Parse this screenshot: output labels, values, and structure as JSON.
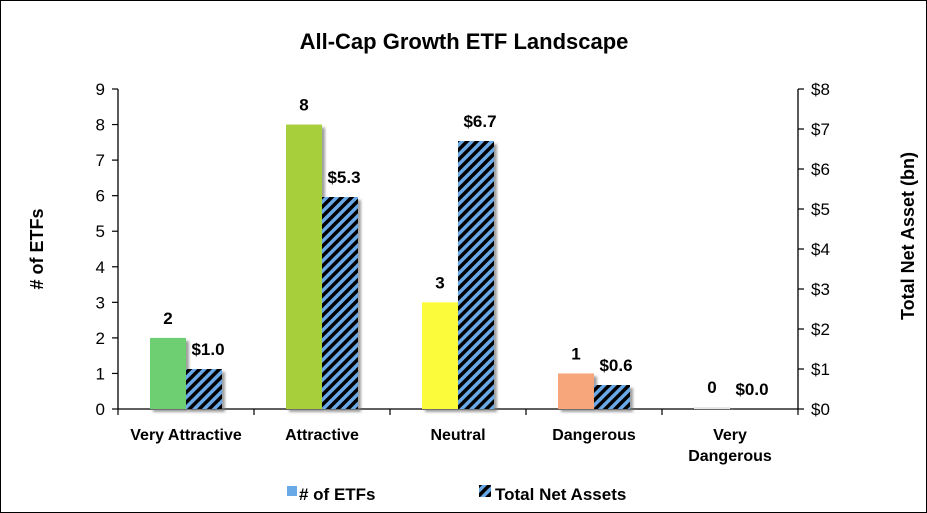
{
  "chart_data": {
    "type": "bar",
    "title": "All-Cap Growth ETF Landscape",
    "categories": [
      [
        "Very Attractive"
      ],
      [
        "Attractive"
      ],
      [
        "Neutral"
      ],
      [
        "Dangerous"
      ],
      [
        "Very",
        "Dangerous"
      ]
    ],
    "ylabel": "# of ETFs",
    "y2label": "Total Net Asset (bn)",
    "ylim": [
      0,
      9
    ],
    "y2lim": [
      0,
      8
    ],
    "yticks": [
      "0",
      "1",
      "2",
      "3",
      "4",
      "5",
      "6",
      "7",
      "8",
      "9"
    ],
    "y2ticks": [
      "$0",
      "$1",
      "$2",
      "$3",
      "$4",
      "$5",
      "$6",
      "$7",
      "$8"
    ],
    "series": [
      {
        "name": "# of ETFs",
        "axis": "left",
        "values": [
          2,
          8,
          3,
          1,
          0
        ],
        "labels": [
          "2",
          "8",
          "3",
          "1",
          "0"
        ],
        "colors": [
          "#6dcf72",
          "#a7cf3a",
          "#fbfb3a",
          "#f7a57a",
          "#e6e6e6"
        ],
        "legend_color": "#6aa9e8"
      },
      {
        "name": "Total Net Assets",
        "axis": "right",
        "values": [
          1.0,
          5.3,
          6.7,
          0.6,
          0.0
        ],
        "labels": [
          "$1.0",
          "$5.3",
          "$6.7",
          "$0.6",
          "$0.0"
        ],
        "pattern": "diagonal-hatch",
        "colors": [
          "#6aa9e8",
          "#000000"
        ]
      }
    ],
    "grid": false,
    "legend_position": "bottom"
  }
}
